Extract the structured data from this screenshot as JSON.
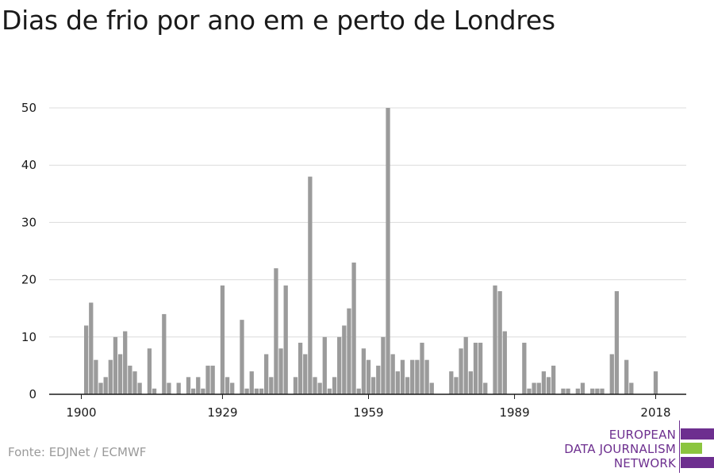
{
  "chart_data": {
    "type": "bar",
    "title": "Dias de frio por ano em e perto de Londres",
    "xlabel": "",
    "ylabel": "",
    "x_start": 1900,
    "x_end": 2018,
    "x_ticks": [
      1900,
      1929,
      1959,
      1989,
      2018
    ],
    "y_ticks": [
      0,
      10,
      20,
      30,
      40,
      50
    ],
    "ylim": [
      0,
      50
    ],
    "grid": true,
    "bar_color": "#9b9b9b",
    "years": [
      1900,
      1901,
      1902,
      1903,
      1904,
      1905,
      1906,
      1907,
      1908,
      1909,
      1910,
      1911,
      1912,
      1913,
      1914,
      1915,
      1916,
      1917,
      1918,
      1919,
      1920,
      1921,
      1922,
      1923,
      1924,
      1925,
      1926,
      1927,
      1928,
      1929,
      1930,
      1931,
      1932,
      1933,
      1934,
      1935,
      1936,
      1937,
      1938,
      1939,
      1940,
      1941,
      1942,
      1943,
      1944,
      1945,
      1946,
      1947,
      1948,
      1949,
      1950,
      1951,
      1952,
      1953,
      1954,
      1955,
      1956,
      1957,
      1958,
      1959,
      1960,
      1961,
      1962,
      1963,
      1964,
      1965,
      1966,
      1967,
      1968,
      1969,
      1970,
      1971,
      1972,
      1973,
      1974,
      1975,
      1976,
      1977,
      1978,
      1979,
      1980,
      1981,
      1982,
      1983,
      1984,
      1985,
      1986,
      1987,
      1988,
      1989,
      1990,
      1991,
      1992,
      1993,
      1994,
      1995,
      1996,
      1997,
      1998,
      1999,
      2000,
      2001,
      2002,
      2003,
      2004,
      2005,
      2006,
      2007,
      2008,
      2009,
      2010,
      2011,
      2012,
      2013,
      2014,
      2015,
      2016,
      2017,
      2018
    ],
    "values": [
      0,
      12,
      16,
      6,
      2,
      3,
      6,
      10,
      7,
      11,
      5,
      4,
      2,
      0,
      8,
      1,
      0,
      14,
      2,
      0,
      2,
      0,
      3,
      1,
      3,
      1,
      5,
      5,
      0,
      19,
      3,
      2,
      0,
      13,
      1,
      4,
      1,
      1,
      7,
      3,
      22,
      8,
      19,
      0,
      3,
      9,
      7,
      38,
      3,
      2,
      10,
      1,
      3,
      10,
      12,
      15,
      23,
      1,
      8,
      6,
      3,
      5,
      10,
      50,
      7,
      4,
      6,
      3,
      6,
      6,
      9,
      6,
      2,
      0,
      0,
      0,
      4,
      3,
      8,
      10,
      4,
      9,
      9,
      2,
      0,
      19,
      18,
      11,
      0,
      0,
      0,
      9,
      1,
      2,
      2,
      4,
      3,
      5,
      0,
      1,
      1,
      0,
      1,
      2,
      0,
      1,
      1,
      1,
      0,
      7,
      18,
      0,
      6,
      2,
      0,
      0,
      0,
      0,
      4
    ]
  },
  "source": "Fonte: EDJNet / ECMWF",
  "logo": {
    "line1": "EUROPEAN",
    "line2": "DATA JOURNALISM",
    "line3": "NETWORK",
    "colors": {
      "purple": "#6d2f8f",
      "green": "#8bc53f"
    }
  }
}
